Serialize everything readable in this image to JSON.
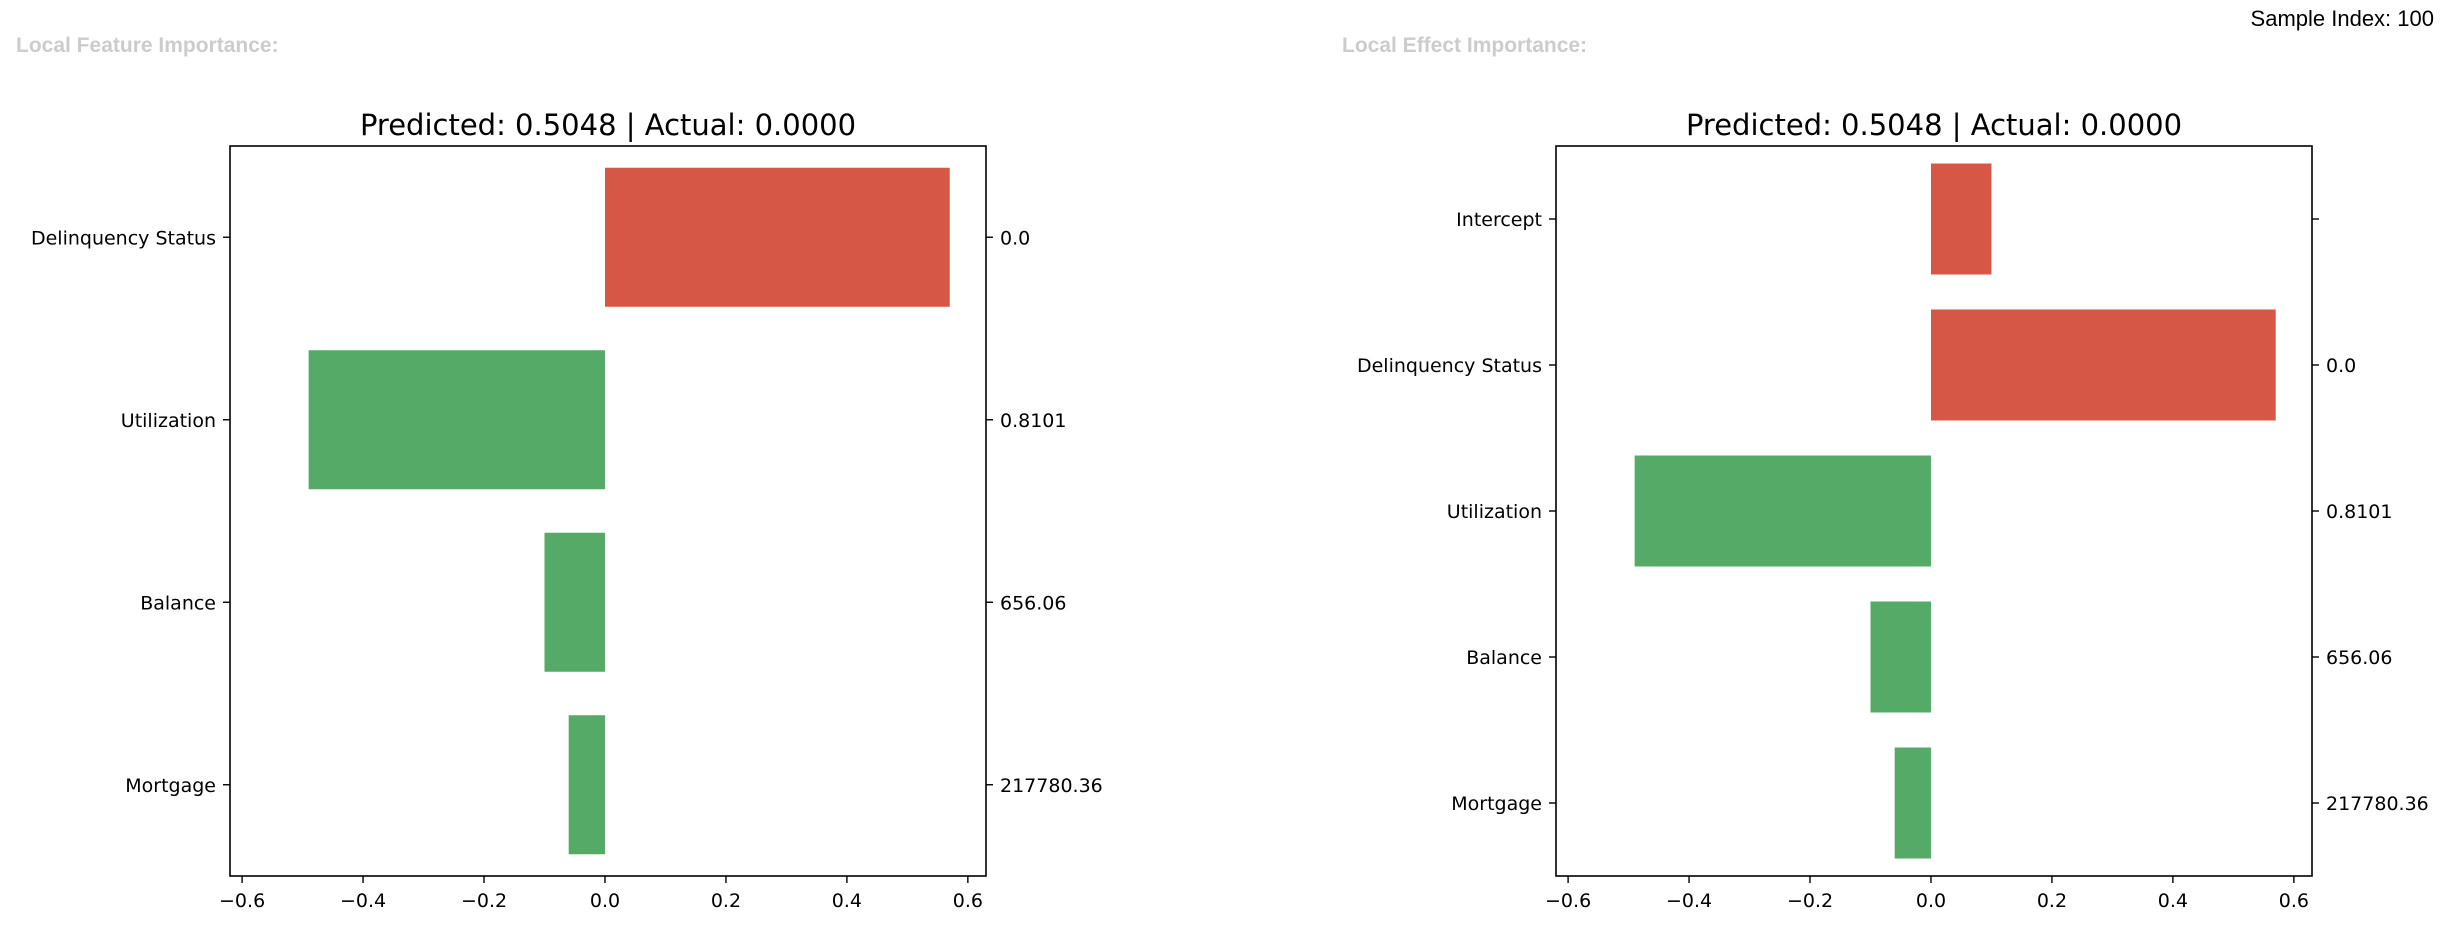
{
  "header": {
    "left_heading": "Local Feature Importance:",
    "right_heading": "Local Effect Importance:",
    "sample_index": "Sample Index: 100"
  },
  "colors": {
    "positive": "#d65745",
    "negative": "#55aa67",
    "heading": "#cccccc"
  },
  "chart_data": [
    {
      "type": "bar",
      "orientation": "horizontal",
      "title": "Predicted: 0.5048 | Actual: 0.0000",
      "categories": [
        "Delinquency Status",
        "Utilization",
        "Balance",
        "Mortgage"
      ],
      "values": [
        0.57,
        -0.49,
        -0.1,
        -0.06
      ],
      "right_tick_labels": [
        "0.0",
        "0.8101",
        "656.06",
        "217780.36"
      ],
      "xlim": [
        -0.62,
        0.63
      ],
      "xticks": [
        -0.6,
        -0.4,
        -0.2,
        0.0,
        0.2,
        0.4,
        0.6
      ],
      "xtick_labels": [
        "−0.6",
        "−0.4",
        "−0.2",
        "0.0",
        "0.2",
        "0.4",
        "0.6"
      ],
      "xlabel": "",
      "ylabel": "",
      "grid": false
    },
    {
      "type": "bar",
      "orientation": "horizontal",
      "title": "Predicted: 0.5048 | Actual: 0.0000",
      "categories": [
        "Intercept",
        "Delinquency Status",
        "Utilization",
        "Balance",
        "Mortgage"
      ],
      "values": [
        0.1,
        0.57,
        -0.49,
        -0.1,
        -0.06
      ],
      "right_tick_labels": [
        "",
        "0.0",
        "0.8101",
        "656.06",
        "217780.36"
      ],
      "xlim": [
        -0.62,
        0.63
      ],
      "xticks": [
        -0.6,
        -0.4,
        -0.2,
        0.0,
        0.2,
        0.4,
        0.6
      ],
      "xtick_labels": [
        "−0.6",
        "−0.4",
        "−0.2",
        "0.0",
        "0.2",
        "0.4",
        "0.6"
      ],
      "xlabel": "",
      "ylabel": "",
      "grid": false
    }
  ]
}
